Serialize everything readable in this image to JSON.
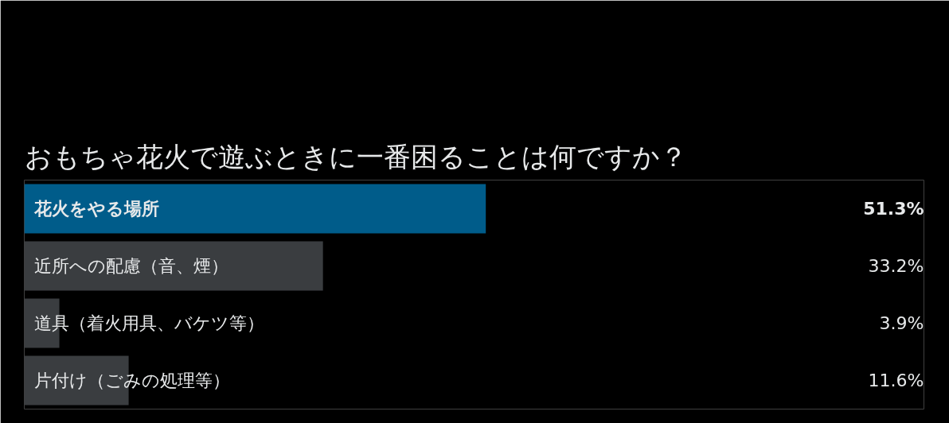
{
  "chart_data": {
    "type": "bar",
    "orientation": "horizontal",
    "title": "おもちゃ花火で遊ぶときに一番困ることは何ですか？",
    "categories": [
      "花火をやる場所",
      "近所への配慮（音、煙）",
      "道具（着火用具、バケツ等）",
      "片付け（ごみの処理等）"
    ],
    "values": [
      51.3,
      33.2,
      3.9,
      11.6
    ],
    "value_labels": [
      "51.3%",
      "33.2%",
      "3.9%",
      "11.6%"
    ],
    "colors": [
      "#005c8a",
      "#3a3d40",
      "#3a3d40",
      "#3a3d40"
    ],
    "xlim": [
      0,
      100
    ],
    "tick_labels": false,
    "grid": false
  }
}
